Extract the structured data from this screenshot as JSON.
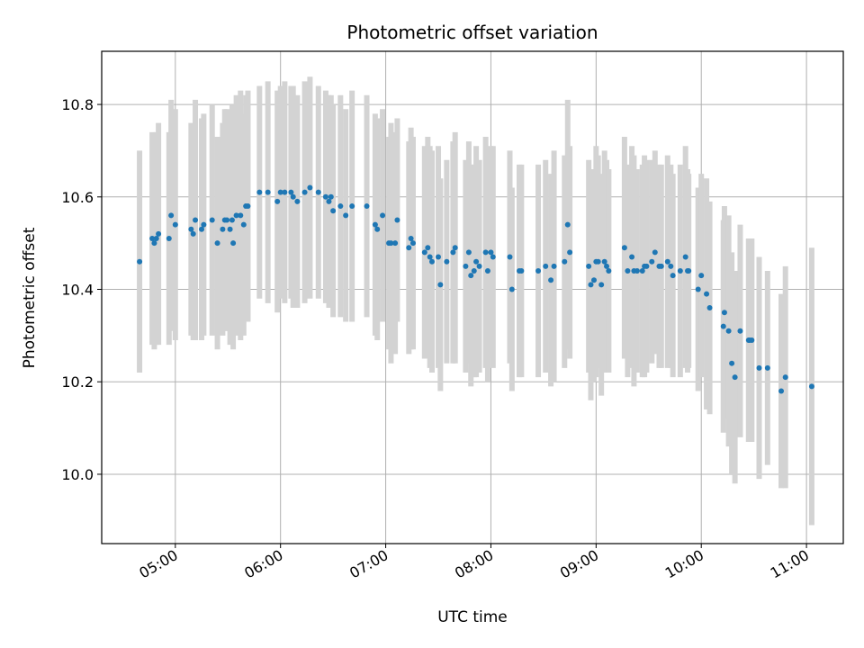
{
  "chart_data": {
    "type": "scatter",
    "title": "Photometric offset variation",
    "xlabel": "UTC time",
    "ylabel": "Photometric offset",
    "x_unit": "hours (UTC)",
    "xlim": [
      4.3,
      11.35
    ],
    "ylim": [
      9.85,
      10.915
    ],
    "xticks": [
      5,
      6,
      7,
      8,
      9,
      10,
      11
    ],
    "xtick_labels": [
      "05:00",
      "06:00",
      "07:00",
      "08:00",
      "09:00",
      "10:00",
      "11:00"
    ],
    "yticks": [
      10.0,
      10.2,
      10.4,
      10.6,
      10.8
    ],
    "ytick_labels": [
      "10.0",
      "10.2",
      "10.4",
      "10.6",
      "10.8"
    ],
    "grid": true,
    "colors": {
      "points": "#1f77b4",
      "errorbars": "#d3d3d3",
      "grid": "#b0b0b0"
    },
    "series": [
      {
        "x": [
          4.66,
          4.78,
          4.8,
          4.82,
          4.84,
          4.94,
          4.96,
          5.0,
          5.15,
          5.17,
          5.19,
          5.25,
          5.27,
          5.35,
          5.4,
          5.45,
          5.47,
          5.49,
          5.52,
          5.54,
          5.55,
          5.58,
          5.62,
          5.65,
          5.67,
          5.69,
          5.8,
          5.88,
          5.97,
          6.0,
          6.04,
          6.1,
          6.12,
          6.16,
          6.23,
          6.28,
          6.36,
          6.43,
          6.46,
          6.48,
          6.5,
          6.57,
          6.62,
          6.68,
          6.82,
          6.9,
          6.92,
          6.97,
          7.03,
          7.05,
          7.09,
          7.11,
          7.22,
          7.24,
          7.26,
          7.37,
          7.4,
          7.42,
          7.44,
          7.5,
          7.52,
          7.58,
          7.64,
          7.66,
          7.76,
          7.79,
          7.81,
          7.84,
          7.86,
          7.89,
          7.95,
          7.97,
          8.0,
          8.02,
          8.18,
          8.2,
          8.27,
          8.29,
          8.45,
          8.52,
          8.57,
          8.6,
          8.7,
          8.73,
          8.75,
          8.93,
          8.95,
          8.98,
          9.0,
          9.02,
          9.05,
          9.08,
          9.1,
          9.12,
          9.27,
          9.3,
          9.34,
          9.36,
          9.39,
          9.44,
          9.46,
          9.48,
          9.53,
          9.56,
          9.6,
          9.62,
          9.68,
          9.71,
          9.73,
          9.8,
          9.85,
          9.87,
          9.88,
          9.97,
          10.0,
          10.05,
          10.08,
          10.21,
          10.22,
          10.26,
          10.29,
          10.32,
          10.37,
          10.45,
          10.46,
          10.48,
          10.55,
          10.63,
          10.76,
          10.8,
          11.05
        ],
        "y": [
          10.46,
          10.51,
          10.5,
          10.51,
          10.52,
          10.51,
          10.56,
          10.54,
          10.53,
          10.52,
          10.55,
          10.53,
          10.54,
          10.55,
          10.5,
          10.53,
          10.55,
          10.55,
          10.53,
          10.55,
          10.5,
          10.56,
          10.56,
          10.54,
          10.58,
          10.58,
          10.61,
          10.61,
          10.59,
          10.61,
          10.61,
          10.61,
          10.6,
          10.59,
          10.61,
          10.62,
          10.61,
          10.6,
          10.59,
          10.6,
          10.57,
          10.58,
          10.56,
          10.58,
          10.58,
          10.54,
          10.53,
          10.56,
          10.5,
          10.5,
          10.5,
          10.55,
          10.49,
          10.51,
          10.5,
          10.48,
          10.49,
          10.47,
          10.46,
          10.47,
          10.41,
          10.46,
          10.48,
          10.49,
          10.45,
          10.48,
          10.43,
          10.44,
          10.46,
          10.45,
          10.48,
          10.44,
          10.48,
          10.47,
          10.47,
          10.4,
          10.44,
          10.44,
          10.44,
          10.45,
          10.42,
          10.45,
          10.46,
          10.54,
          10.48,
          10.45,
          10.41,
          10.42,
          10.46,
          10.46,
          10.41,
          10.46,
          10.45,
          10.44,
          10.49,
          10.44,
          10.47,
          10.44,
          10.44,
          10.44,
          10.45,
          10.45,
          10.46,
          10.48,
          10.45,
          10.45,
          10.46,
          10.45,
          10.43,
          10.44,
          10.47,
          10.44,
          10.44,
          10.4,
          10.43,
          10.39,
          10.36,
          10.32,
          10.35,
          10.31,
          10.24,
          10.21,
          10.31,
          10.29,
          10.29,
          10.29,
          10.23,
          10.23,
          10.18,
          10.21,
          10.19
        ],
        "err": [
          0.24,
          0.23,
          0.23,
          0.23,
          0.24,
          0.23,
          0.25,
          0.25,
          0.23,
          0.23,
          0.26,
          0.24,
          0.24,
          0.25,
          0.23,
          0.23,
          0.24,
          0.24,
          0.25,
          0.25,
          0.23,
          0.26,
          0.27,
          0.24,
          0.24,
          0.25,
          0.23,
          0.24,
          0.24,
          0.23,
          0.24,
          0.23,
          0.24,
          0.23,
          0.24,
          0.24,
          0.23,
          0.23,
          0.23,
          0.22,
          0.23,
          0.24,
          0.23,
          0.25,
          0.24,
          0.24,
          0.24,
          0.23,
          0.23,
          0.26,
          0.24,
          0.22,
          0.23,
          0.24,
          0.23,
          0.23,
          0.24,
          0.24,
          0.24,
          0.24,
          0.23,
          0.22,
          0.24,
          0.25,
          0.23,
          0.24,
          0.24,
          0.23,
          0.25,
          0.23,
          0.25,
          0.24,
          0.23,
          0.24,
          0.23,
          0.22,
          0.23,
          0.23,
          0.23,
          0.23,
          0.23,
          0.25,
          0.23,
          0.27,
          0.23,
          0.23,
          0.25,
          0.22,
          0.25,
          0.23,
          0.24,
          0.24,
          0.23,
          0.22,
          0.24,
          0.23,
          0.24,
          0.25,
          0.22,
          0.23,
          0.24,
          0.23,
          0.22,
          0.22,
          0.22,
          0.22,
          0.23,
          0.22,
          0.22,
          0.23,
          0.24,
          0.22,
          0.21,
          0.22,
          0.22,
          0.25,
          0.23,
          0.23,
          0.23,
          0.25,
          0.24,
          0.23,
          0.23,
          0.22,
          0.22,
          0.22,
          0.24,
          0.21,
          0.21,
          0.24,
          0.3
        ]
      }
    ]
  }
}
